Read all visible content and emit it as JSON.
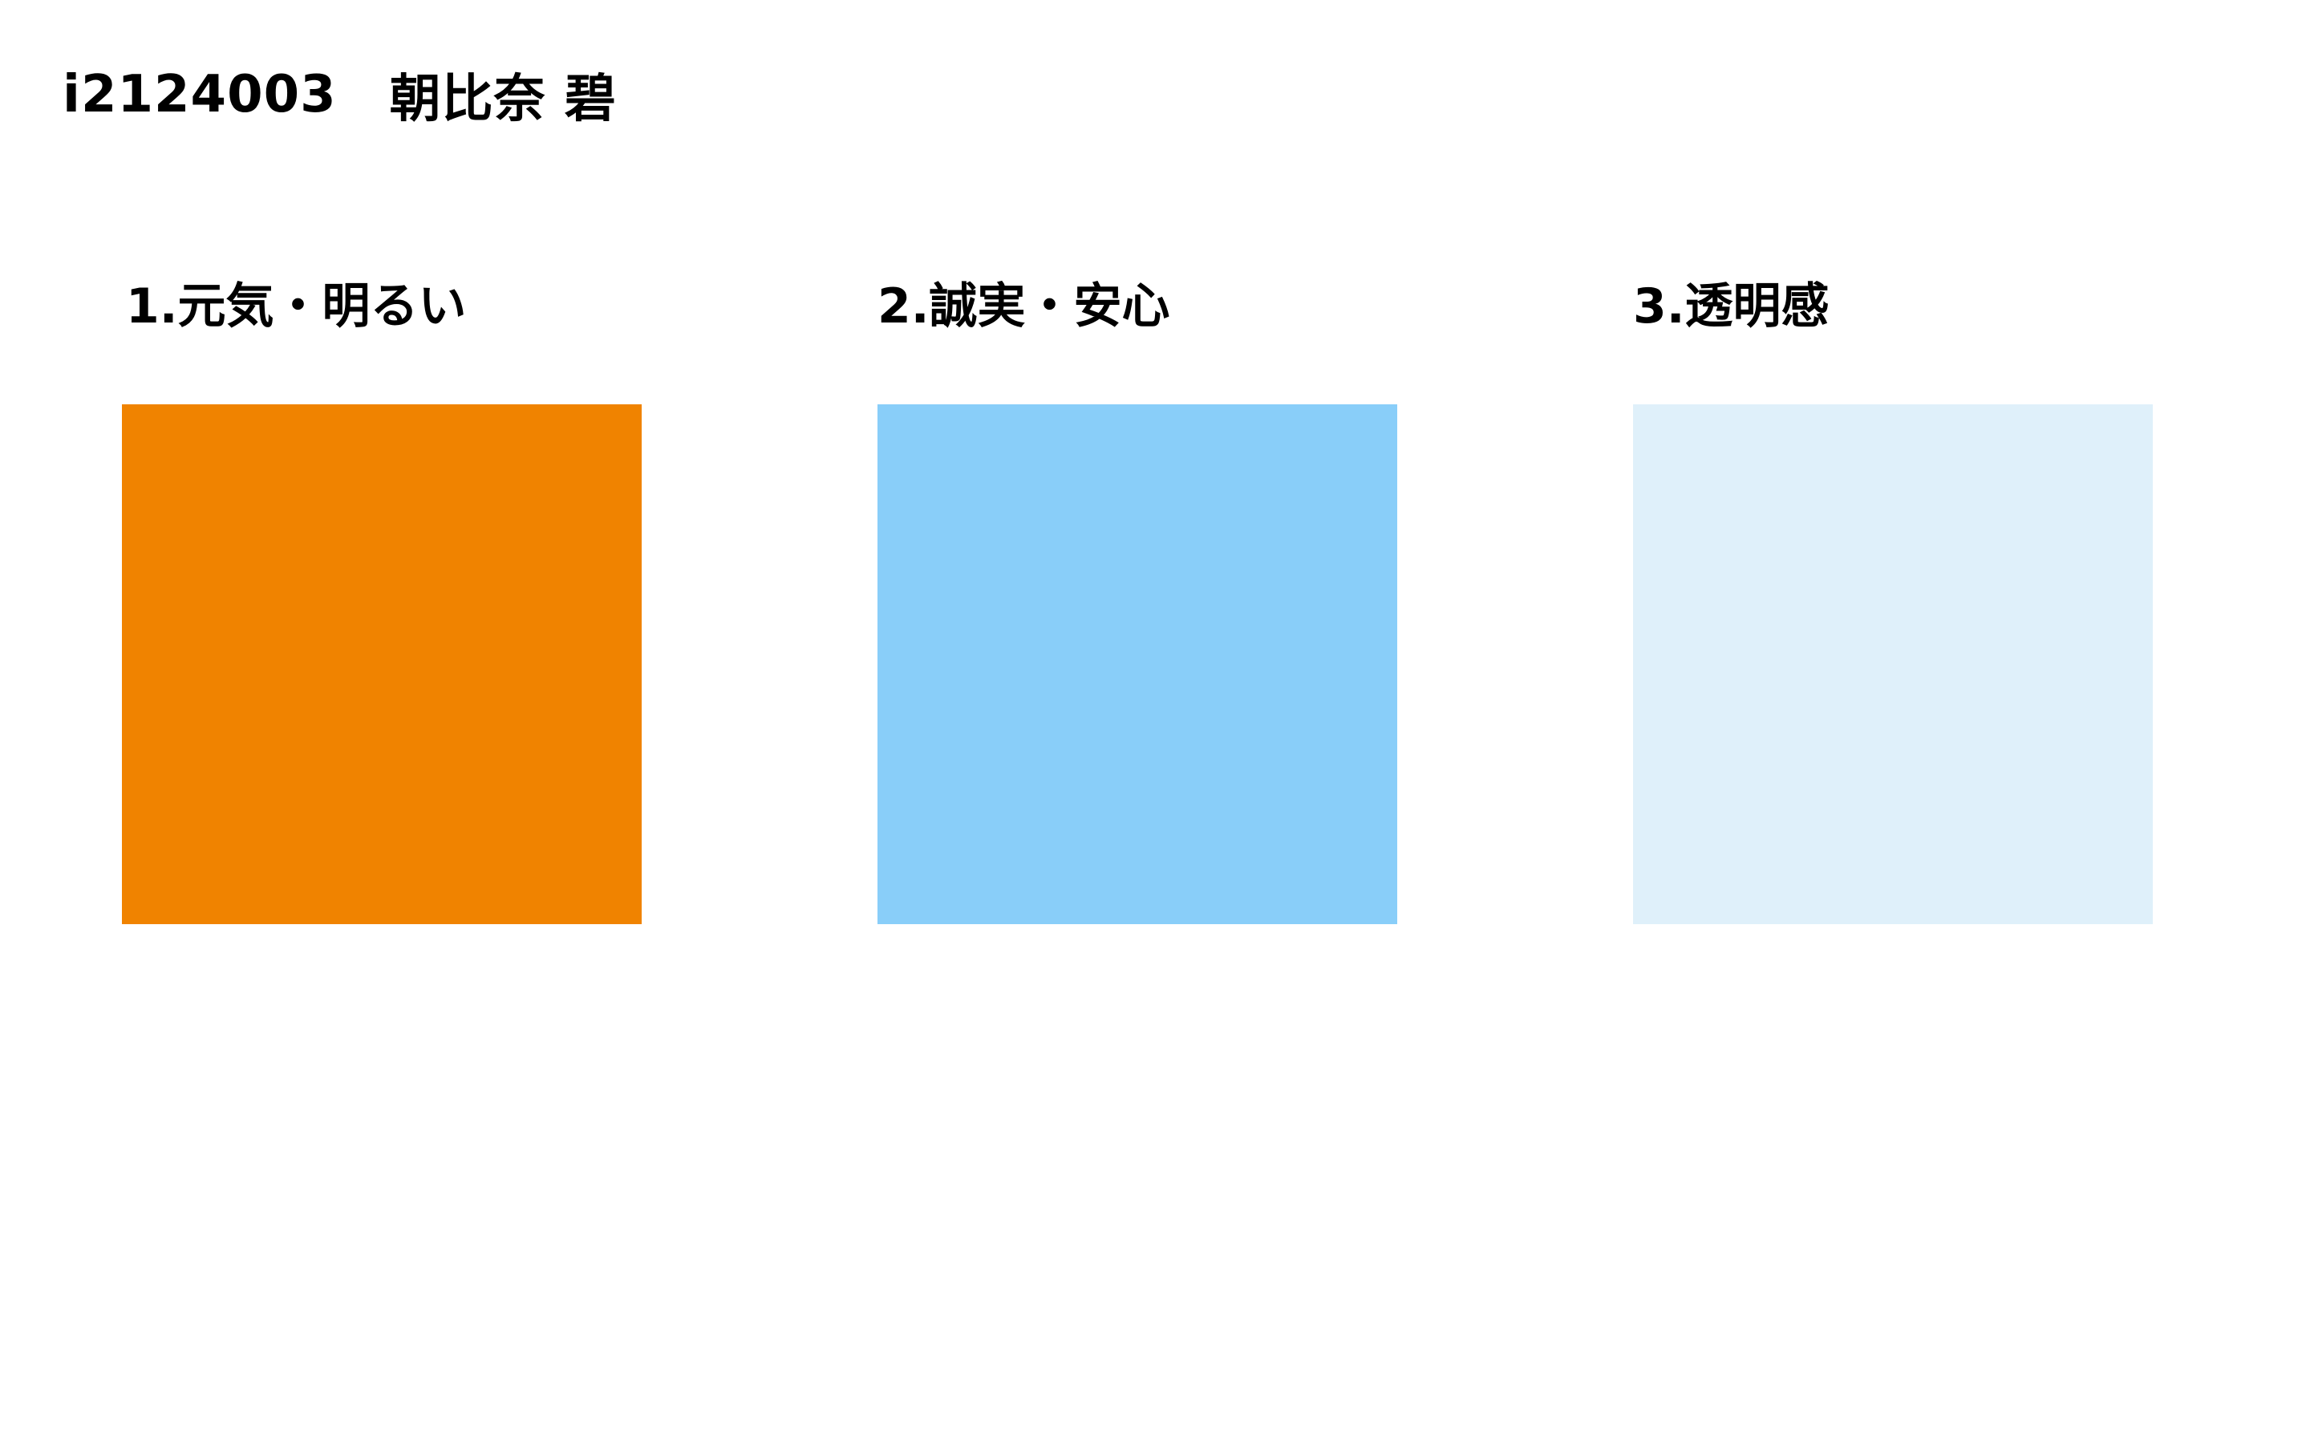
{
  "header": {
    "student_id": "i2124003",
    "student_name": "朝比奈 碧"
  },
  "swatches": [
    {
      "label": "1.元気・明るい",
      "color": "#F08300"
    },
    {
      "label": "2.誠実・安心",
      "color": "#89CEF9"
    },
    {
      "label": "3.透明感",
      "color": "#DFF0FA"
    }
  ]
}
